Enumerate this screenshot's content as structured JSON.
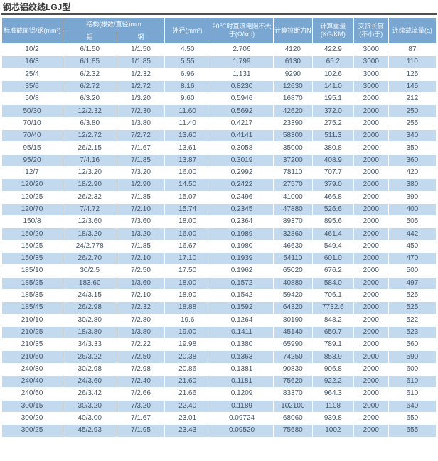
{
  "title": "钢芯铝绞线LGJ型",
  "colors": {
    "header_bg": "#7aa6d2",
    "row_alt_bg": "#c2d9ee",
    "row_bg": "#ffffff",
    "body_text": "#47586b",
    "header_text": "#f4f9fd",
    "title_text": "#3b3b3b",
    "title_rule": "#4f4f4f"
  },
  "table": {
    "headers": {
      "col_section": "标准截面铝/钢(mm²)",
      "col_structure": "结构(根数/直径)mm",
      "col_structure_al": "铝",
      "col_structure_steel": "钢",
      "col_outer_diameter": "外径(mm²)",
      "col_resistance": "20℃时直流电阻不大于(Ω/km)",
      "col_tensile": "计算拉断力N",
      "col_weight": "计算重量(KG/KM)",
      "col_delivery_length": "交货长度(不小于)",
      "col_ampacity": "连续载流量(a)"
    },
    "rows": [
      [
        "10/2",
        "6/1.50",
        "1/1.50",
        "4.50",
        "2.706",
        "4120",
        "422.9",
        "3000",
        "87"
      ],
      [
        "16/3",
        "6/1.85",
        "1/1.85",
        "5.55",
        "1.799",
        "6130",
        "65.2",
        "3000",
        "110"
      ],
      [
        "25/4",
        "6/2.32",
        "1/2.32",
        "6.96",
        "1.131",
        "9290",
        "102.6",
        "3000",
        "125"
      ],
      [
        "35/6",
        "6/2.72",
        "1/2.72",
        "8.16",
        "0.8230",
        "12630",
        "141.0",
        "3000",
        "145"
      ],
      [
        "50/8",
        "6/3.20",
        "1/3.20",
        "9.60",
        "0.5946",
        "16870",
        "195.1",
        "2000",
        "212"
      ],
      [
        "50/30",
        "12/2.32",
        "7/2.30",
        "11.60",
        "0.5692",
        "42620",
        "372.0",
        "2000",
        "250"
      ],
      [
        "70/10",
        "6/3.80",
        "1/3.80",
        "11.40",
        "0.4217",
        "23390",
        "275.2",
        "2000",
        "255"
      ],
      [
        "70/40",
        "12/2.72",
        "7/2.72",
        "13.60",
        "0.4141",
        "58300",
        "511.3",
        "2000",
        "340"
      ],
      [
        "95/15",
        "26/2.15",
        "7/1.67",
        "13.61",
        "0.3058",
        "35000",
        "380.8",
        "2000",
        "350"
      ],
      [
        "95/20",
        "7/4.16",
        "7/1.85",
        "13.87",
        "0.3019",
        "37200",
        "408.9",
        "2000",
        "360"
      ],
      [
        "12/7",
        "12/3.20",
        "7/3.20",
        "16.00",
        "0.2992",
        "78110",
        "707.7",
        "2000",
        "420"
      ],
      [
        "120/20",
        "18/2.90",
        "1/2.90",
        "14.50",
        "0.2422",
        "27570",
        "379.0",
        "2000",
        "380"
      ],
      [
        "120/25",
        "26/2.32",
        "7/1.85",
        "15.07",
        "0.2496",
        "41000",
        "466.8",
        "2000",
        "390"
      ],
      [
        "120/70",
        "7/4.72",
        "7/2.10",
        "15.74",
        "0.2345",
        "47880",
        "526.6",
        "2000",
        "400"
      ],
      [
        "150/8",
        "12/3.60",
        "7/3.60",
        "18.00",
        "0.2364",
        "89370",
        "895.6",
        "2000",
        "505"
      ],
      [
        "150/20",
        "18/3.20",
        "1/3.20",
        "16.00",
        "0.1989",
        "32860",
        "461.4",
        "2000",
        "442"
      ],
      [
        "150/25",
        "24/2.778",
        "7/1.85",
        "16.67",
        "0.1980",
        "46630",
        "549.4",
        "2000",
        "450"
      ],
      [
        "150/35",
        "26/2.70",
        "7/2.10",
        "17.10",
        "0.1939",
        "54110",
        "601.0",
        "2000",
        "470"
      ],
      [
        "185/10",
        "30/2.5",
        "7/2.50",
        "17.50",
        "0.1962",
        "65020",
        "676.2",
        "2000",
        "500"
      ],
      [
        "185/25",
        "183.60",
        "1/3.60",
        "18.00",
        "0.1572",
        "40880",
        "584.0",
        "2000",
        "497"
      ],
      [
        "185/35",
        "24/3.15",
        "7/2.10",
        "18.90",
        "0.1542",
        "59420",
        "706.1",
        "2000",
        "525"
      ],
      [
        "185/45",
        "26/2.98",
        "7/2.32",
        "18.88",
        "0.1592",
        "64320",
        "7732.6",
        "2000",
        "525"
      ],
      [
        "210/10",
        "30/2.80",
        "7/2.80",
        "19.6",
        "0.1264",
        "80190",
        "848.2",
        "2000",
        "522"
      ],
      [
        "210/25",
        "18/3.80",
        "1/3.80",
        "19.00",
        "0.1411",
        "45140",
        "650.7",
        "2000",
        "523"
      ],
      [
        "210/35",
        "34/3.33",
        "7/2.22",
        "19.98",
        "0.1380",
        "65990",
        "789.1",
        "2000",
        "560"
      ],
      [
        "210/50",
        "26/3.22",
        "7/2.50",
        "20.38",
        "0.1363",
        "74250",
        "853.9",
        "2000",
        "590"
      ],
      [
        "240/30",
        "30/2.98",
        "7/2.98",
        "20.86",
        "0.1381",
        "90830",
        "906.8",
        "2000",
        "600"
      ],
      [
        "240/40",
        "24/3.60",
        "7/2.40",
        "21.60",
        "0.1181",
        "75620",
        "922.2",
        "2000",
        "610"
      ],
      [
        "240/50",
        "26/3.42",
        "7/2.66",
        "21.66",
        "0.1209",
        "83370",
        "964.3",
        "2000",
        "610"
      ],
      [
        "300/15",
        "30/3.20",
        "7/3.20",
        "22.40",
        "0.1189",
        "102100",
        "1108",
        "2000",
        "640"
      ],
      [
        "300/20",
        "40/3.00",
        "7/1.67",
        "23.01",
        "0.09724",
        "68060",
        "939.8",
        "2000",
        "650"
      ],
      [
        "300/25",
        "45/2.93",
        "7/1.95",
        "23.43",
        "0.09520",
        "75680",
        "1002",
        "2000",
        "655"
      ]
    ]
  }
}
